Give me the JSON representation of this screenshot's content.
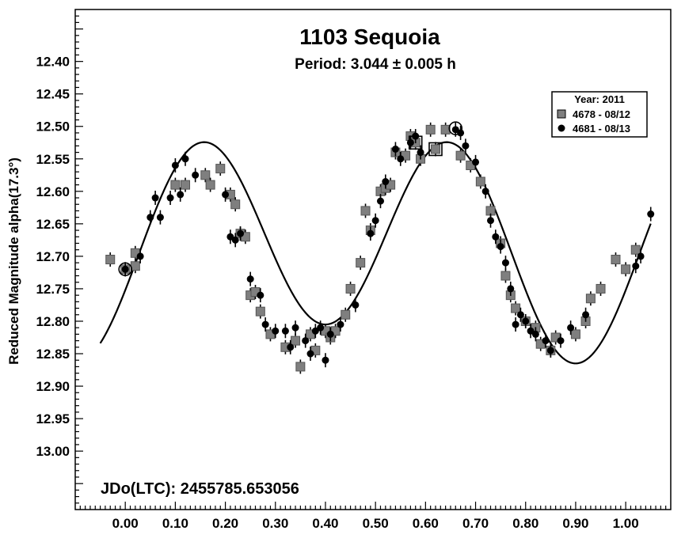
{
  "chart_data": {
    "type": "scatter",
    "title": "1103 Sequoia",
    "subtitle": "Period: 3.044 ± 0.005 h",
    "xlabel": "",
    "ylabel": "Reduced Magnitude alpha(17.3°)",
    "xlim": [
      -0.1,
      1.09
    ],
    "ylim": [
      12.32,
      13.09
    ],
    "y_inverted": true,
    "x_ticks": [
      "0.00",
      "0.10",
      "0.20",
      "0.30",
      "0.40",
      "0.50",
      "0.60",
      "0.70",
      "0.80",
      "0.90",
      "1.00"
    ],
    "y_ticks": [
      "12.40",
      "12.45",
      "12.50",
      "12.55",
      "12.60",
      "12.65",
      "12.70",
      "12.75",
      "12.80",
      "12.85",
      "12.90",
      "12.95",
      "13.00"
    ],
    "annotation": "JDo(LTC): 2455785.653056",
    "grid": false,
    "legend": {
      "placement": "top-right",
      "title": "Year: 2011",
      "entries": [
        {
          "label": "4678 - 08/12",
          "marker": "square"
        },
        {
          "label": "4681 - 08/13",
          "marker": "circle"
        }
      ]
    },
    "series": [
      {
        "name": "4678 - 08/12",
        "marker": "square",
        "color": "#7f7f7f",
        "points": [
          [
            -0.03,
            12.705
          ],
          [
            0.0,
            12.72
          ],
          [
            0.02,
            12.715
          ],
          [
            0.02,
            12.695
          ],
          [
            0.1,
            12.59
          ],
          [
            0.12,
            12.59
          ],
          [
            0.16,
            12.575
          ],
          [
            0.17,
            12.59
          ],
          [
            0.19,
            12.565
          ],
          [
            0.21,
            12.605
          ],
          [
            0.22,
            12.62
          ],
          [
            0.23,
            12.665
          ],
          [
            0.24,
            12.67
          ],
          [
            0.25,
            12.76
          ],
          [
            0.26,
            12.755
          ],
          [
            0.27,
            12.785
          ],
          [
            0.29,
            12.82
          ],
          [
            0.32,
            12.84
          ],
          [
            0.34,
            12.83
          ],
          [
            0.35,
            12.87
          ],
          [
            0.37,
            12.82
          ],
          [
            0.38,
            12.845
          ],
          [
            0.4,
            12.815
          ],
          [
            0.41,
            12.825
          ],
          [
            0.42,
            12.815
          ],
          [
            0.44,
            12.79
          ],
          [
            0.45,
            12.75
          ],
          [
            0.47,
            12.71
          ],
          [
            0.48,
            12.63
          ],
          [
            0.49,
            12.66
          ],
          [
            0.51,
            12.6
          ],
          [
            0.52,
            12.595
          ],
          [
            0.53,
            12.59
          ],
          [
            0.54,
            12.54
          ],
          [
            0.56,
            12.545
          ],
          [
            0.57,
            12.515
          ],
          [
            0.58,
            12.525
          ],
          [
            0.59,
            12.55
          ],
          [
            0.61,
            12.505
          ],
          [
            0.62,
            12.535
          ],
          [
            0.64,
            12.505
          ],
          [
            0.67,
            12.545
          ],
          [
            0.69,
            12.56
          ],
          [
            0.71,
            12.585
          ],
          [
            0.73,
            12.63
          ],
          [
            0.75,
            12.68
          ],
          [
            0.76,
            12.73
          ],
          [
            0.77,
            12.76
          ],
          [
            0.78,
            12.78
          ],
          [
            0.8,
            12.8
          ],
          [
            0.82,
            12.81
          ],
          [
            0.83,
            12.835
          ],
          [
            0.85,
            12.845
          ],
          [
            0.86,
            12.825
          ],
          [
            0.9,
            12.82
          ],
          [
            0.92,
            12.8
          ],
          [
            0.93,
            12.765
          ],
          [
            0.95,
            12.75
          ],
          [
            0.98,
            12.705
          ],
          [
            1.0,
            12.72
          ],
          [
            1.02,
            12.69
          ]
        ]
      },
      {
        "name": "4681 - 08/13",
        "marker": "circle",
        "color": "#000000",
        "points": [
          [
            0.0,
            12.72
          ],
          [
            0.03,
            12.7
          ],
          [
            0.05,
            12.64
          ],
          [
            0.06,
            12.61
          ],
          [
            0.07,
            12.64
          ],
          [
            0.09,
            12.61
          ],
          [
            0.1,
            12.56
          ],
          [
            0.11,
            12.605
          ],
          [
            0.12,
            12.55
          ],
          [
            0.14,
            12.575
          ],
          [
            0.2,
            12.605
          ],
          [
            0.21,
            12.67
          ],
          [
            0.22,
            12.675
          ],
          [
            0.23,
            12.665
          ],
          [
            0.25,
            12.735
          ],
          [
            0.27,
            12.76
          ],
          [
            0.28,
            12.805
          ],
          [
            0.3,
            12.815
          ],
          [
            0.32,
            12.815
          ],
          [
            0.33,
            12.84
          ],
          [
            0.34,
            12.81
          ],
          [
            0.36,
            12.83
          ],
          [
            0.37,
            12.85
          ],
          [
            0.38,
            12.815
          ],
          [
            0.39,
            12.81
          ],
          [
            0.4,
            12.86
          ],
          [
            0.41,
            12.82
          ],
          [
            0.43,
            12.805
          ],
          [
            0.46,
            12.775
          ],
          [
            0.49,
            12.665
          ],
          [
            0.5,
            12.645
          ],
          [
            0.51,
            12.615
          ],
          [
            0.52,
            12.585
          ],
          [
            0.54,
            12.535
          ],
          [
            0.55,
            12.55
          ],
          [
            0.57,
            12.525
          ],
          [
            0.58,
            12.515
          ],
          [
            0.59,
            12.54
          ],
          [
            0.66,
            12.505
          ],
          [
            0.67,
            12.51
          ],
          [
            0.68,
            12.53
          ],
          [
            0.7,
            12.555
          ],
          [
            0.72,
            12.6
          ],
          [
            0.73,
            12.645
          ],
          [
            0.74,
            12.67
          ],
          [
            0.75,
            12.685
          ],
          [
            0.76,
            12.71
          ],
          [
            0.77,
            12.75
          ],
          [
            0.78,
            12.805
          ],
          [
            0.79,
            12.79
          ],
          [
            0.8,
            12.8
          ],
          [
            0.81,
            12.815
          ],
          [
            0.82,
            12.82
          ],
          [
            0.84,
            12.83
          ],
          [
            0.85,
            12.845
          ],
          [
            0.87,
            12.83
          ],
          [
            0.89,
            12.81
          ],
          [
            0.92,
            12.79
          ],
          [
            1.02,
            12.715
          ],
          [
            1.03,
            12.7
          ],
          [
            1.05,
            12.635
          ]
        ]
      }
    ],
    "highlighted_points": [
      {
        "x": 0.0,
        "y": 12.72,
        "marker": "circle"
      },
      {
        "x": 0.58,
        "y": 12.525,
        "marker": "square"
      },
      {
        "x": 0.62,
        "y": 12.535,
        "marker": "square"
      },
      {
        "x": 0.66,
        "y": 12.503,
        "marker": "circle"
      }
    ],
    "fit_curve": {
      "type": "fourier",
      "period_phase": 1.0,
      "mean": 12.68,
      "components": [
        {
          "harmonic": 2,
          "amplitude": 0.155,
          "peak_phase": 0.15
        },
        {
          "harmonic": 1,
          "amplitude": -0.03,
          "peak_phase": 0.9
        }
      ],
      "x_range": [
        -0.05,
        1.05
      ]
    }
  }
}
